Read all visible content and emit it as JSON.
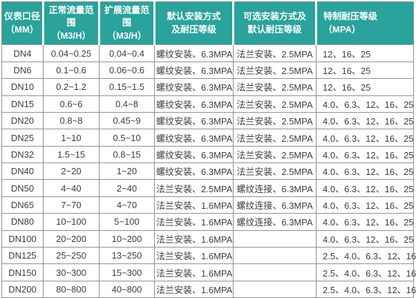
{
  "colors": {
    "header_bg": "#29a39b",
    "header_text": "#ffffff",
    "border": "#8f8f8f",
    "cell_text": "#3c3c3c",
    "row_bg": "#ffffff"
  },
  "table": {
    "headers": [
      {
        "l1": "仪表口径",
        "l2": "（MM）"
      },
      {
        "l1": "正常流量范围",
        "l2": "（M3/H）"
      },
      {
        "l1": "扩展流量范围",
        "l2": "（M3/H）"
      },
      {
        "l1": "默认安装方式",
        "l2": "及耐压等级"
      },
      {
        "l1": "可选安装方式及",
        "l2": "默认耐压等级"
      },
      {
        "l1": "特制耐压等级",
        "l2": "（MPA）"
      }
    ],
    "rows": [
      {
        "size": "DN4",
        "normal_flow": "0.04~0.25",
        "extended_flow": "0.04~0.4",
        "default_install": "螺纹安装、6.3MPA",
        "optional_install": "法兰安装、2.5MPA",
        "special_pressure": "12、16、25"
      },
      {
        "size": "DN6",
        "normal_flow": "0.1~0.6",
        "extended_flow": "0.06~0.6",
        "default_install": "螺纹安装、6.3MPA",
        "optional_install": "法兰安装、2.5MPA",
        "special_pressure": "12、16、25"
      },
      {
        "size": "DN10",
        "normal_flow": "0.2~1.2",
        "extended_flow": "0.15~1.5",
        "default_install": "螺纹安装、6.3MPA",
        "optional_install": "法兰安装、2.5MPA",
        "special_pressure": "12、16、25"
      },
      {
        "size": "DN15",
        "normal_flow": "0.6~6",
        "extended_flow": "0.4~8",
        "default_install": "螺纹安装、6.3MPA",
        "optional_install": "法兰安装、2.5MPA",
        "special_pressure": "4.0、6.3、12、16、25"
      },
      {
        "size": "DN20",
        "normal_flow": "0.8~8",
        "extended_flow": "0.45~9",
        "default_install": "螺纹安装、6.3MPA",
        "optional_install": "法兰安装、2.5MPA",
        "special_pressure": "4.0、6.3、12、16、25"
      },
      {
        "size": "DN25",
        "normal_flow": "1~10",
        "extended_flow": "0.5~10",
        "default_install": "螺纹安装、6.3MPA",
        "optional_install": "法兰安装、2.5MPA",
        "special_pressure": "4.0、6.3、12、16、25"
      },
      {
        "size": "DN32",
        "normal_flow": "1.5~15",
        "extended_flow": "0.8~15",
        "default_install": "螺纹安装、6.3MPA",
        "optional_install": "法兰安装、2.5MPA",
        "special_pressure": "4.0、6.3、12、16、25"
      },
      {
        "size": "DN40",
        "normal_flow": "2~20",
        "extended_flow": "1~20",
        "default_install": "螺纹安装、6.3MPA",
        "optional_install": "法兰安装、2.5MPA",
        "special_pressure": "4.0、6.3、12、16、25"
      },
      {
        "size": "DN50",
        "normal_flow": "4~40",
        "extended_flow": "2~40",
        "default_install": "法兰安装、2.5MPA",
        "optional_install": "螺纹连接、6.3MPA",
        "special_pressure": "4.0、6.3、12、16、25"
      },
      {
        "size": "DN65",
        "normal_flow": "7~70",
        "extended_flow": "4~70",
        "default_install": "法兰安装、1.6MPA",
        "optional_install": "螺纹连接、6.3MPA",
        "special_pressure": "4.0、6.3、12、16、25"
      },
      {
        "size": "DN80",
        "normal_flow": "10~100",
        "extended_flow": "5~100",
        "default_install": "法兰安装、1.6MPA",
        "optional_install": "螺纹连接、6.3MPA",
        "special_pressure": "4.0、6.3、12、16、25"
      },
      {
        "size": "DN100",
        "normal_flow": "20~200",
        "extended_flow": "10~200",
        "default_install": "法兰安装、1.6MPA",
        "optional_install": "",
        "special_pressure": "4.0、6.3、12、16、25"
      },
      {
        "size": "DN125",
        "normal_flow": "25~250",
        "extended_flow": "13~250",
        "default_install": "法兰安装、1.6MPA",
        "optional_install": "",
        "special_pressure": "2.5、4.0、6.3、12、16"
      },
      {
        "size": "DN150",
        "normal_flow": "30~300",
        "extended_flow": "15~300",
        "default_install": "法兰安装、1.6MPA",
        "optional_install": "",
        "special_pressure": "2.5、4.0、6.3、12、16"
      },
      {
        "size": "DN200",
        "normal_flow": "80~800",
        "extended_flow": "40~800",
        "default_install": "法兰安装、1.6MPA",
        "optional_install": "",
        "special_pressure": "2.5、4.0、6.3、12、16"
      }
    ]
  }
}
